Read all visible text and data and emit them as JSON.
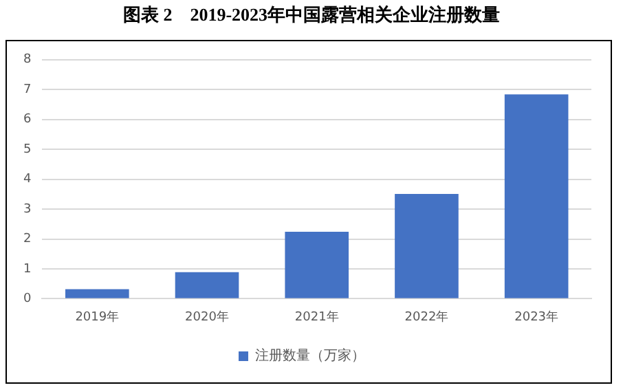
{
  "chart_data": {
    "type": "bar",
    "title": "图表 2　2019-2023年中国露营相关企业注册数量",
    "categories": [
      "2019年",
      "2020年",
      "2021年",
      "2022年",
      "2023年"
    ],
    "series": [
      {
        "name": "注册数量（万家）",
        "color": "#4472c4",
        "values": [
          0.32,
          0.89,
          2.24,
          3.51,
          6.84
        ]
      }
    ],
    "ylim": [
      0,
      8
    ],
    "yticks": [
      0,
      1,
      2,
      3,
      4,
      5,
      6,
      7,
      8
    ],
    "grid": "y",
    "legend": "bottom"
  }
}
